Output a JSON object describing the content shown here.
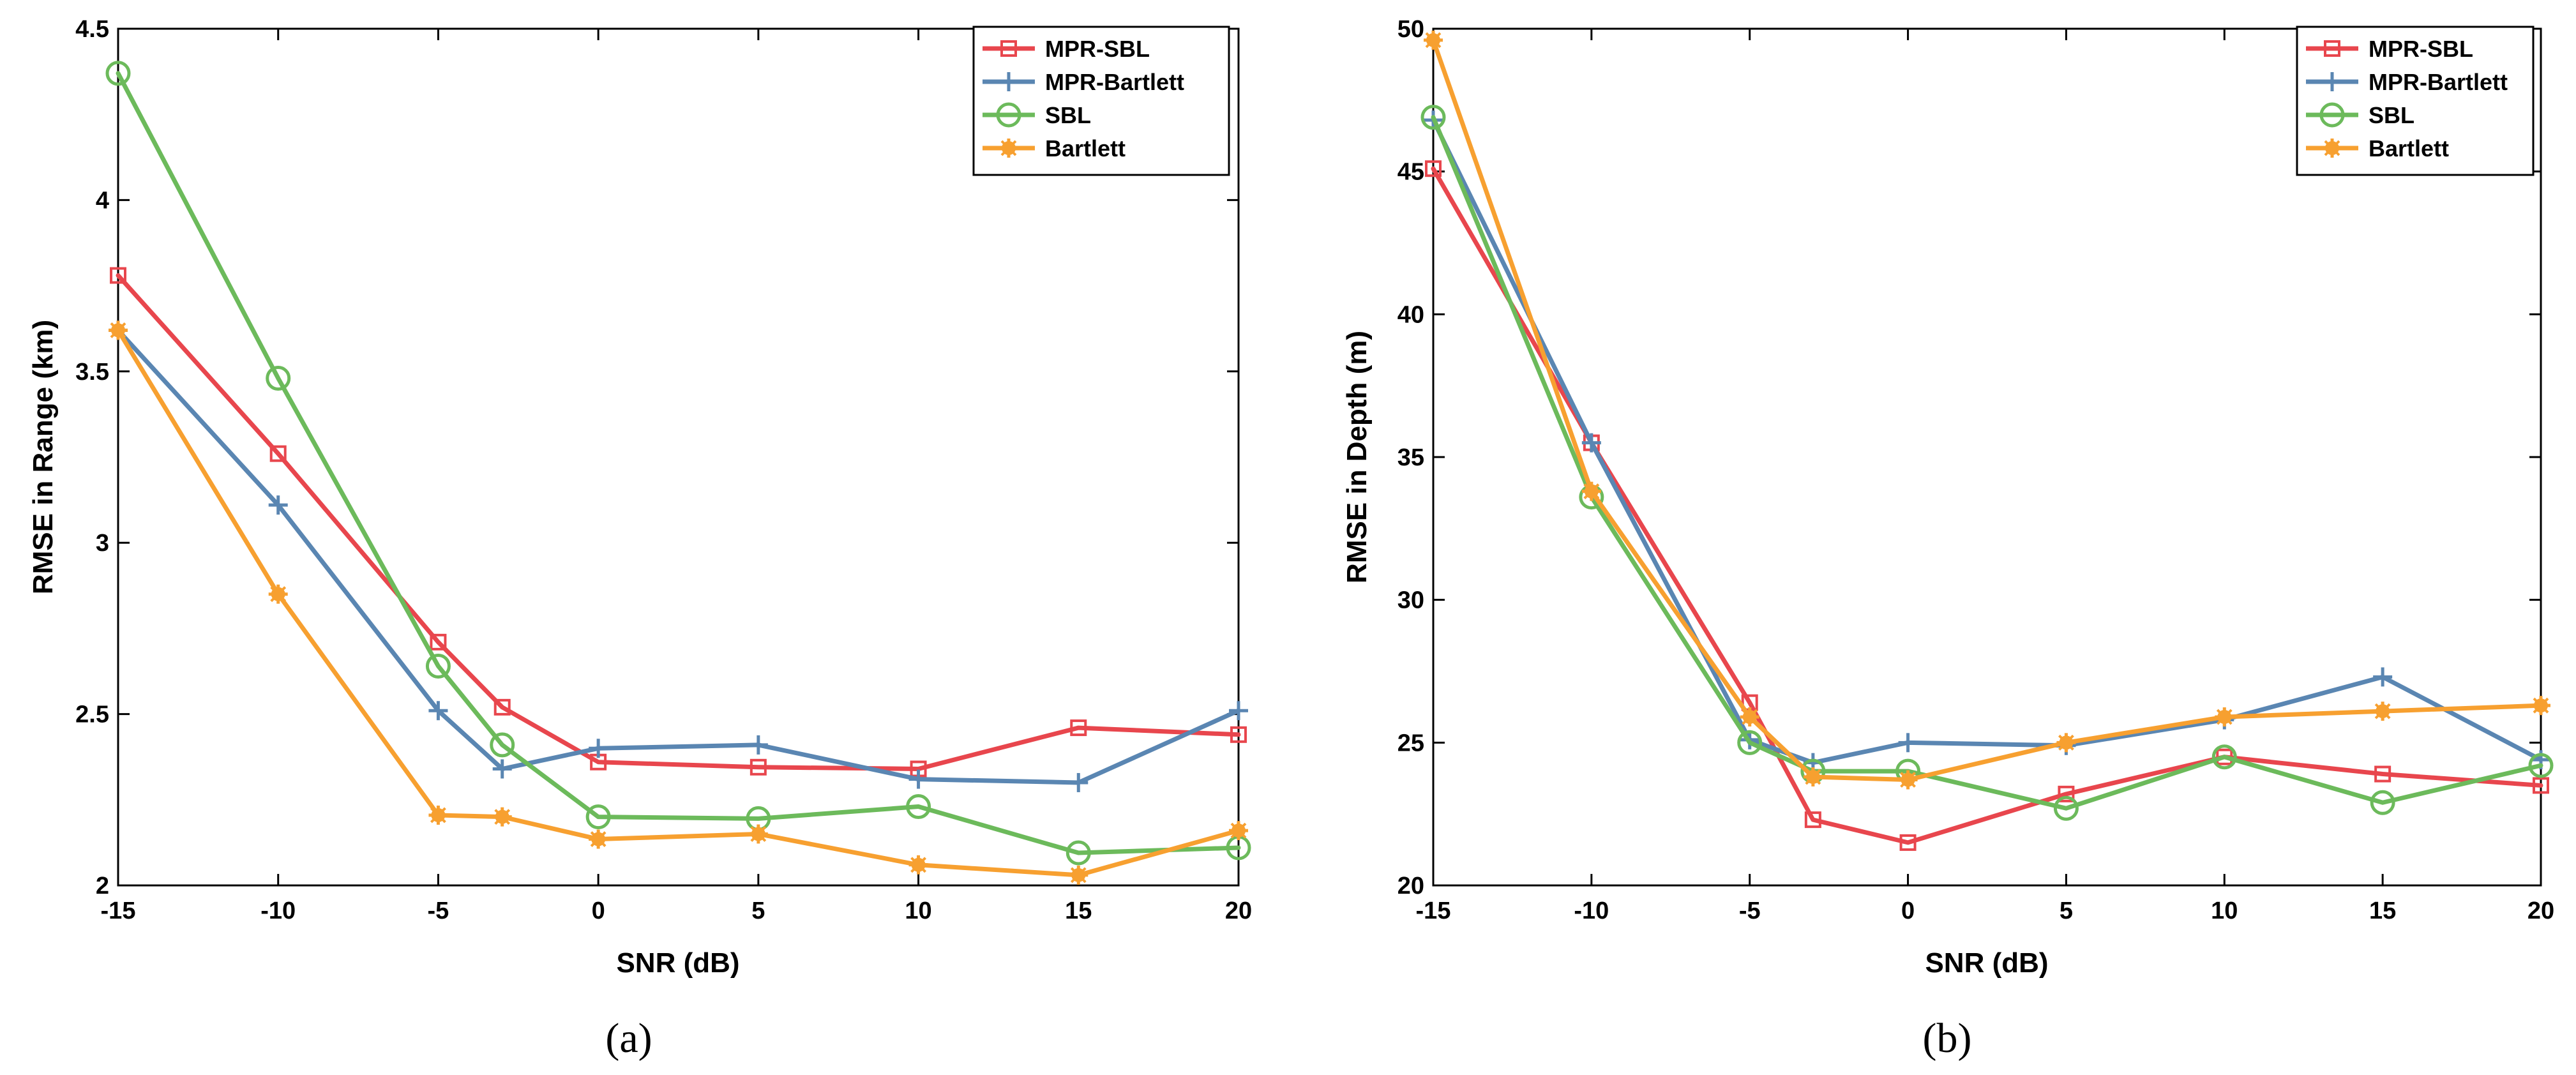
{
  "colors": {
    "MPR-SBL": "#e8464d",
    "MPR-Bartlett": "#5a86b2",
    "SBL": "#6cba5b",
    "Bartlett": "#f7a030"
  },
  "chart_data": [
    {
      "type": "line",
      "caption": "(a)",
      "xlabel": "SNR (dB)",
      "ylabel": "RMSE in Range (km)",
      "xlim": [
        -15,
        20
      ],
      "ylim": [
        2,
        4.5
      ],
      "xticks": [
        -15,
        -10,
        -5,
        0,
        5,
        10,
        15,
        20
      ],
      "yticks": [
        2,
        2.5,
        3,
        3.5,
        4,
        4.5
      ],
      "x": [
        -15,
        -10,
        -5,
        -3,
        0,
        5,
        10,
        15,
        20
      ],
      "legend_position": "top-right",
      "series": [
        {
          "name": "MPR-SBL",
          "marker": "square",
          "values": [
            3.78,
            3.26,
            2.71,
            2.52,
            2.36,
            2.345,
            2.34,
            2.46,
            2.44
          ]
        },
        {
          "name": "MPR-Bartlett",
          "marker": "plus",
          "values": [
            3.62,
            3.11,
            2.51,
            2.34,
            2.4,
            2.41,
            2.31,
            2.3,
            2.51
          ]
        },
        {
          "name": "SBL",
          "marker": "circle",
          "values": [
            4.37,
            3.48,
            2.64,
            2.41,
            2.2,
            2.195,
            2.23,
            2.095,
            2.11
          ]
        },
        {
          "name": "Bartlett",
          "marker": "star",
          "values": [
            3.62,
            2.85,
            2.205,
            2.2,
            2.135,
            2.15,
            2.06,
            2.03,
            2.16
          ]
        }
      ]
    },
    {
      "type": "line",
      "caption": "(b)",
      "xlabel": "SNR (dB)",
      "ylabel": "RMSE in Depth (m)",
      "xlim": [
        -15,
        20
      ],
      "ylim": [
        20,
        50
      ],
      "xticks": [
        -15,
        -10,
        -5,
        0,
        5,
        10,
        15,
        20
      ],
      "yticks": [
        20,
        25,
        30,
        35,
        40,
        45,
        50
      ],
      "x": [
        -15,
        -10,
        -5,
        -3,
        0,
        5,
        10,
        15,
        20
      ],
      "legend_position": "top-right",
      "series": [
        {
          "name": "MPR-SBL",
          "marker": "square",
          "values": [
            45.1,
            35.5,
            26.4,
            22.3,
            21.5,
            23.2,
            24.5,
            23.9,
            23.5
          ]
        },
        {
          "name": "MPR-Bartlett",
          "marker": "plus",
          "values": [
            46.8,
            35.5,
            25.1,
            24.3,
            25.0,
            24.9,
            25.8,
            27.3,
            24.4
          ]
        },
        {
          "name": "SBL",
          "marker": "circle",
          "values": [
            46.9,
            33.6,
            25.0,
            24.0,
            24.0,
            22.7,
            24.5,
            22.9,
            24.2
          ]
        },
        {
          "name": "Bartlett",
          "marker": "star",
          "values": [
            49.6,
            33.8,
            25.9,
            23.8,
            23.7,
            25.0,
            25.9,
            26.1,
            26.3
          ]
        }
      ]
    }
  ]
}
